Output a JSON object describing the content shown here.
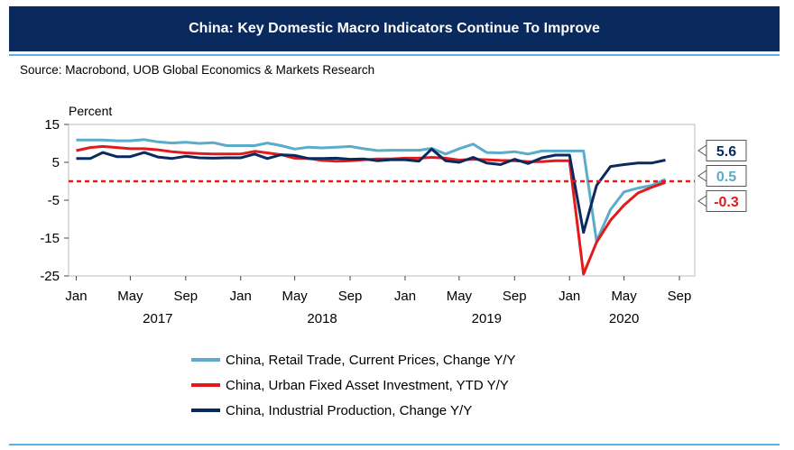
{
  "header": {
    "title": "China: Key Domestic Macro Indicators Continue To Improve",
    "source": "Source: Macrobond, UOB Global Economics & Markets Research"
  },
  "chart_data": {
    "type": "line",
    "ylabel": "Percent",
    "ylim": [
      -25,
      15
    ],
    "yticks": [
      15,
      5,
      -5,
      -15,
      -25
    ],
    "xlim": [
      "2016-12-15",
      "2020-10-05"
    ],
    "xticks": [
      {
        "label": "Jan",
        "date": "2017-01-01"
      },
      {
        "label": "May",
        "date": "2017-05-01"
      },
      {
        "label": "Sep",
        "date": "2017-09-01"
      },
      {
        "label": "Jan",
        "date": "2018-01-01"
      },
      {
        "label": "May",
        "date": "2018-05-01"
      },
      {
        "label": "Sep",
        "date": "2018-09-01"
      },
      {
        "label": "Jan",
        "date": "2019-01-01"
      },
      {
        "label": "May",
        "date": "2019-05-01"
      },
      {
        "label": "Sep",
        "date": "2019-09-01"
      },
      {
        "label": "Jan",
        "date": "2020-01-01"
      },
      {
        "label": "May",
        "date": "2020-05-01"
      },
      {
        "label": "Sep",
        "date": "2020-09-01"
      }
    ],
    "year_labels": [
      {
        "label": "2017",
        "date": "2017-07-01"
      },
      {
        "label": "2018",
        "date": "2018-07-01"
      },
      {
        "label": "2019",
        "date": "2019-07-01"
      },
      {
        "label": "2020",
        "date": "2020-05-01"
      }
    ],
    "reference_line": {
      "value": 0,
      "color": "#e31a1c",
      "style": "dashed"
    },
    "series": [
      {
        "name": "China, Retail Trade, Current Prices, Change Y/Y",
        "color": "#5aacca",
        "x": [
          "2017-01-01",
          "2017-02-01",
          "2017-03-01",
          "2017-04-01",
          "2017-05-01",
          "2017-06-01",
          "2017-07-01",
          "2017-08-01",
          "2017-09-01",
          "2017-10-01",
          "2017-11-01",
          "2017-12-01",
          "2018-01-01",
          "2018-02-01",
          "2018-03-01",
          "2018-04-01",
          "2018-05-01",
          "2018-06-01",
          "2018-07-01",
          "2018-08-01",
          "2018-09-01",
          "2018-10-01",
          "2018-11-01",
          "2018-12-01",
          "2019-01-01",
          "2019-02-01",
          "2019-03-01",
          "2019-04-01",
          "2019-05-01",
          "2019-06-01",
          "2019-07-01",
          "2019-08-01",
          "2019-09-01",
          "2019-10-01",
          "2019-11-01",
          "2019-12-01",
          "2020-01-01",
          "2020-02-01",
          "2020-03-01",
          "2020-04-01",
          "2020-05-01",
          "2020-06-01",
          "2020-07-01",
          "2020-08-01"
        ],
        "values": [
          10.9,
          10.9,
          10.9,
          10.7,
          10.7,
          11.0,
          10.4,
          10.1,
          10.3,
          10.0,
          10.2,
          9.4,
          9.4,
          9.4,
          10.1,
          9.4,
          8.5,
          9.0,
          8.8,
          9.0,
          9.2,
          8.6,
          8.1,
          8.2,
          8.2,
          8.2,
          8.7,
          7.2,
          8.6,
          9.8,
          7.6,
          7.5,
          7.8,
          7.2,
          8.0,
          8.0,
          8.0,
          8.0,
          -15.8,
          -7.5,
          -2.8,
          -1.8,
          -1.1,
          0.5
        ]
      },
      {
        "name": "China, Urban Fixed Asset Investment, YTD Y/Y",
        "color": "#e31a1c",
        "x": [
          "2017-01-01",
          "2017-02-01",
          "2017-03-01",
          "2017-04-01",
          "2017-05-01",
          "2017-06-01",
          "2017-07-01",
          "2017-08-01",
          "2017-09-01",
          "2017-10-01",
          "2017-11-01",
          "2017-12-01",
          "2018-01-01",
          "2018-02-01",
          "2018-03-01",
          "2018-04-01",
          "2018-05-01",
          "2018-06-01",
          "2018-07-01",
          "2018-08-01",
          "2018-09-01",
          "2018-10-01",
          "2018-11-01",
          "2018-12-01",
          "2019-01-01",
          "2019-02-01",
          "2019-03-01",
          "2019-04-01",
          "2019-05-01",
          "2019-06-01",
          "2019-07-01",
          "2019-08-01",
          "2019-09-01",
          "2019-10-01",
          "2019-11-01",
          "2019-12-01",
          "2020-01-01",
          "2020-02-01",
          "2020-03-01",
          "2020-04-01",
          "2020-05-01",
          "2020-06-01",
          "2020-07-01",
          "2020-08-01"
        ],
        "values": [
          8.1,
          8.9,
          9.2,
          8.9,
          8.6,
          8.6,
          8.3,
          7.8,
          7.5,
          7.3,
          7.2,
          7.2,
          7.2,
          7.9,
          7.5,
          7.0,
          6.1,
          6.0,
          5.5,
          5.3,
          5.4,
          5.7,
          5.9,
          5.9,
          6.1,
          6.1,
          6.3,
          6.1,
          5.6,
          5.8,
          5.7,
          5.5,
          5.4,
          5.2,
          5.2,
          5.4,
          5.4,
          -24.5,
          -16.1,
          -10.3,
          -6.3,
          -3.1,
          -1.6,
          -0.3
        ]
      },
      {
        "name": "China, Industrial Production, Change Y/Y",
        "color": "#0a2a5e",
        "x": [
          "2017-01-01",
          "2017-02-01",
          "2017-03-01",
          "2017-04-01",
          "2017-05-01",
          "2017-06-01",
          "2017-07-01",
          "2017-08-01",
          "2017-09-01",
          "2017-10-01",
          "2017-11-01",
          "2017-12-01",
          "2018-01-01",
          "2018-02-01",
          "2018-03-01",
          "2018-04-01",
          "2018-05-01",
          "2018-06-01",
          "2018-07-01",
          "2018-08-01",
          "2018-09-01",
          "2018-10-01",
          "2018-11-01",
          "2018-12-01",
          "2019-01-01",
          "2019-02-01",
          "2019-03-01",
          "2019-04-01",
          "2019-05-01",
          "2019-06-01",
          "2019-07-01",
          "2019-08-01",
          "2019-09-01",
          "2019-10-01",
          "2019-11-01",
          "2019-12-01",
          "2020-01-01",
          "2020-02-01",
          "2020-03-01",
          "2020-04-01",
          "2020-05-01",
          "2020-06-01",
          "2020-07-01",
          "2020-08-01"
        ],
        "values": [
          6.0,
          6.0,
          7.6,
          6.5,
          6.5,
          7.6,
          6.4,
          6.0,
          6.6,
          6.2,
          6.1,
          6.2,
          6.2,
          7.2,
          6.0,
          7.0,
          6.8,
          6.0,
          6.0,
          6.1,
          5.8,
          5.9,
          5.4,
          5.7,
          5.7,
          5.3,
          8.5,
          5.4,
          5.0,
          6.3,
          4.8,
          4.4,
          5.8,
          4.7,
          6.2,
          6.9,
          6.9,
          -13.5,
          -1.1,
          3.9,
          4.4,
          4.8,
          4.8,
          5.6
        ]
      }
    ],
    "end_labels": [
      {
        "text": "5.6",
        "color": "#0a2a5e"
      },
      {
        "text": "0.5",
        "color": "#5aacca"
      },
      {
        "text": "-0.3",
        "color": "#e31a1c"
      }
    ]
  }
}
